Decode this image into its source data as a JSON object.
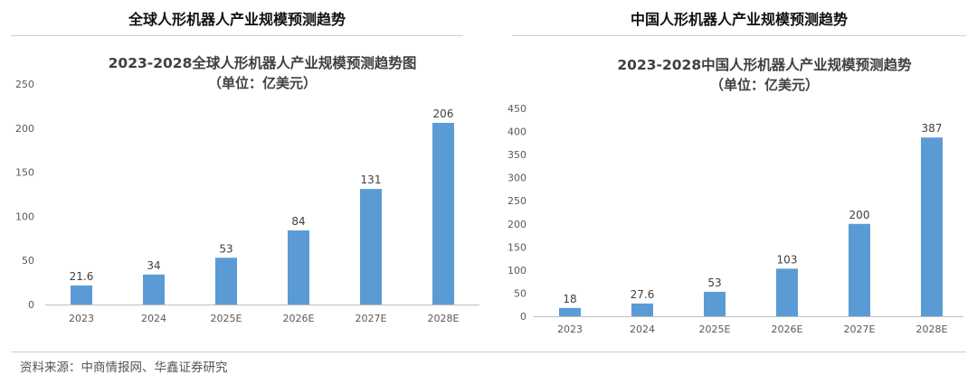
{
  "panels": {
    "left": {
      "header": "全球人形机器人产业规模预测趋势"
    },
    "right": {
      "header": "中国人形机器人产业规模预测趋势"
    }
  },
  "source": "资料来源：中商情报网、华鑫证券研究",
  "chart_data": [
    {
      "type": "bar",
      "title": "2023-2028全球人形机器人产业规模预测趋势图",
      "subtitle": "（单位：亿美元）",
      "categories": [
        "2023",
        "2024",
        "2025E",
        "2026E",
        "2027E",
        "2028E"
      ],
      "values": [
        21.6,
        34,
        53,
        84,
        131,
        206
      ],
      "value_labels": [
        "21.6",
        "34",
        "53",
        "84",
        "131",
        "206"
      ],
      "ylim": [
        0,
        250
      ],
      "yticks": [
        0,
        50,
        100,
        150,
        200,
        250
      ],
      "bar_color": "#5b9bd5",
      "grid": false,
      "legend": "none"
    },
    {
      "type": "bar",
      "title": "2023-2028中国人形机器人产业规模预测趋势",
      "subtitle": "（单位：亿美元）",
      "categories": [
        "2023",
        "2024",
        "2025E",
        "2026E",
        "2027E",
        "2028E"
      ],
      "values": [
        18,
        27.6,
        53,
        103,
        200,
        387
      ],
      "value_labels": [
        "18",
        "27.6",
        "53",
        "103",
        "200",
        "387"
      ],
      "ylim": [
        0,
        450
      ],
      "yticks": [
        0,
        50,
        100,
        150,
        200,
        250,
        300,
        350,
        400,
        450
      ],
      "bar_color": "#5b9bd5",
      "grid": false,
      "legend": "none"
    }
  ]
}
